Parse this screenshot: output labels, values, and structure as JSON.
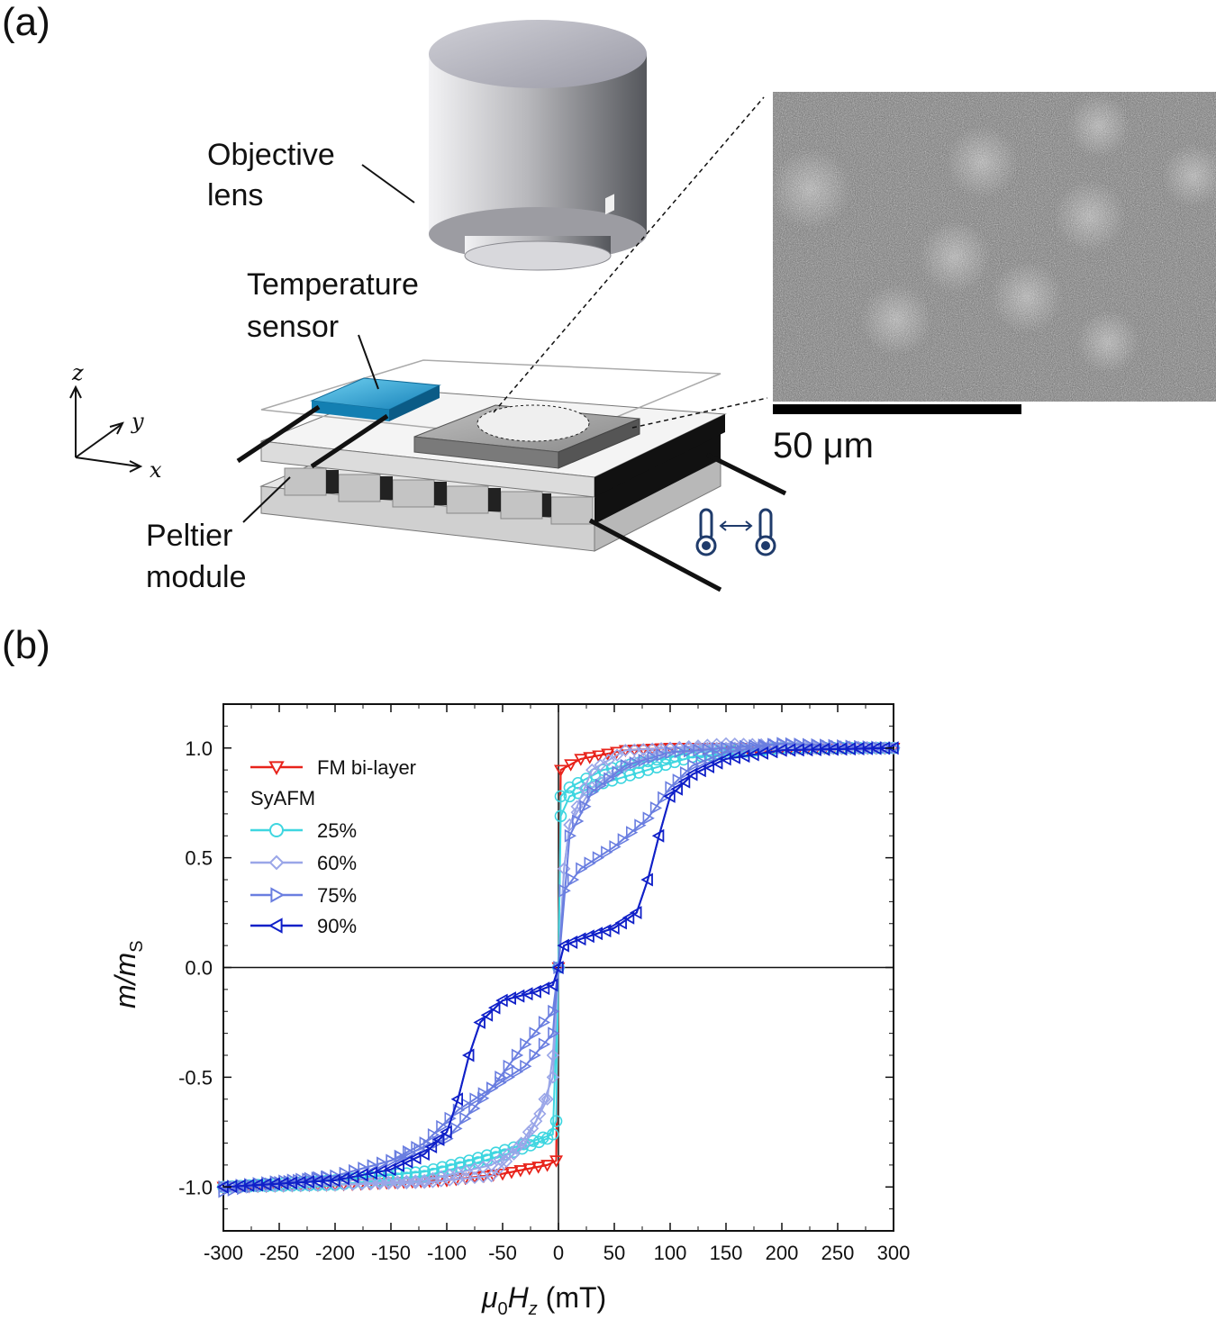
{
  "panel_a": {
    "label": "(a)",
    "objective_label_1": "Objective",
    "objective_label_2": "lens",
    "sensor_label_1": "Temperature",
    "sensor_label_2": "sensor",
    "peltier_label_1": "Peltier",
    "peltier_label_2": "module",
    "axis_z": "z",
    "axis_y": "y",
    "axis_x": "x",
    "scale_bar": "50 μm",
    "colors": {
      "sensor": "#1fa3d6",
      "lens": "#c8c8cc",
      "thermo": "#1f3b6b"
    }
  },
  "panel_b": {
    "label": "(b)",
    "xlabel_mu": "μ",
    "xlabel_sub0": "0",
    "xlabel_H": "H",
    "xlabel_subz": "z",
    "xlabel_unit": " (mT)",
    "ylabel_m": "m/m",
    "ylabel_sub": "S",
    "legend_title": "SyAFM",
    "chart_data": {
      "type": "line",
      "xlim": [
        -300,
        300
      ],
      "ylim": [
        -1.2,
        1.2
      ],
      "x_ticks": [
        "-300",
        "-250",
        "-200",
        "-150",
        "-100",
        "-50",
        "0",
        "50",
        "100",
        "150",
        "200",
        "250",
        "300"
      ],
      "y_ticks": [
        "-1.0",
        "-0.5",
        "0.0",
        "0.5",
        "1.0"
      ],
      "series": [
        {
          "name": "FM bi-layer",
          "color": "#e8231b",
          "marker": "triangle-down",
          "up_branch": [
            [
              -300,
              -1.0
            ],
            [
              -200,
              -0.99
            ],
            [
              -100,
              -0.97
            ],
            [
              -50,
              -0.94
            ],
            [
              -10,
              -0.9
            ],
            [
              -2,
              -0.88
            ],
            [
              0,
              0.0
            ],
            [
              2,
              0.9
            ],
            [
              20,
              0.95
            ],
            [
              60,
              0.99
            ],
            [
              100,
              1.0
            ],
            [
              200,
              1.0
            ],
            [
              300,
              1.0
            ]
          ],
          "down_branch": [
            [
              300,
              1.0
            ],
            [
              200,
              1.0
            ],
            [
              100,
              1.0
            ],
            [
              60,
              0.99
            ],
            [
              20,
              0.95
            ],
            [
              2,
              0.9
            ],
            [
              0,
              0.0
            ],
            [
              -2,
              -0.88
            ],
            [
              -10,
              -0.9
            ],
            [
              -50,
              -0.94
            ],
            [
              -100,
              -0.97
            ],
            [
              -200,
              -0.99
            ],
            [
              -300,
              -1.0
            ]
          ]
        },
        {
          "name": "25%",
          "color": "#3fd6e0",
          "marker": "circle",
          "up_branch": [
            [
              -300,
              -1.0
            ],
            [
              -200,
              -0.97
            ],
            [
              -120,
              -0.93
            ],
            [
              -80,
              -0.88
            ],
            [
              -40,
              -0.82
            ],
            [
              -5,
              -0.76
            ],
            [
              0,
              0.0
            ],
            [
              2,
              0.69
            ],
            [
              10,
              0.78
            ],
            [
              40,
              0.84
            ],
            [
              80,
              0.9
            ],
            [
              120,
              0.96
            ],
            [
              200,
              1.0
            ],
            [
              300,
              1.0
            ]
          ],
          "down_branch": [
            [
              300,
              1.0
            ],
            [
              200,
              1.0
            ],
            [
              120,
              0.98
            ],
            [
              80,
              0.94
            ],
            [
              40,
              0.9
            ],
            [
              10,
              0.82
            ],
            [
              2,
              0.78
            ],
            [
              0,
              0.0
            ],
            [
              -2,
              -0.7
            ],
            [
              -10,
              -0.78
            ],
            [
              -40,
              -0.84
            ],
            [
              -80,
              -0.9
            ],
            [
              -120,
              -0.95
            ],
            [
              -200,
              -0.99
            ],
            [
              -300,
              -1.0
            ]
          ]
        },
        {
          "name": "60%",
          "color": "#9aa6e8",
          "marker": "diamond",
          "up_branch": [
            [
              -300,
              -1.0
            ],
            [
              -200,
              -0.99
            ],
            [
              -120,
              -0.98
            ],
            [
              -60,
              -0.95
            ],
            [
              -40,
              -0.85
            ],
            [
              -20,
              -0.7
            ],
            [
              -5,
              -0.5
            ],
            [
              0,
              0.0
            ],
            [
              5,
              0.45
            ],
            [
              10,
              0.65
            ],
            [
              30,
              0.82
            ],
            [
              60,
              0.92
            ],
            [
              100,
              1.0
            ],
            [
              150,
              1.02
            ],
            [
              300,
              1.0
            ]
          ],
          "down_branch": [
            [
              300,
              1.0
            ],
            [
              150,
              1.0
            ],
            [
              100,
              1.0
            ],
            [
              60,
              0.99
            ],
            [
              30,
              0.9
            ],
            [
              10,
              0.65
            ],
            [
              5,
              0.45
            ],
            [
              0,
              0.0
            ],
            [
              -5,
              -0.4
            ],
            [
              -10,
              -0.6
            ],
            [
              -30,
              -0.8
            ],
            [
              -60,
              -0.9
            ],
            [
              -120,
              -0.97
            ],
            [
              -200,
              -0.99
            ],
            [
              -300,
              -1.0
            ]
          ]
        },
        {
          "name": "75%",
          "color": "#6a7ee0",
          "marker": "triangle-right",
          "up_branch": [
            [
              -300,
              -1.02
            ],
            [
              -250,
              -0.98
            ],
            [
              -200,
              -0.95
            ],
            [
              -150,
              -0.88
            ],
            [
              -100,
              -0.78
            ],
            [
              -60,
              -0.55
            ],
            [
              -30,
              -0.35
            ],
            [
              -5,
              -0.2
            ],
            [
              0,
              0.0
            ],
            [
              5,
              0.35
            ],
            [
              20,
              0.45
            ],
            [
              50,
              0.55
            ],
            [
              80,
              0.68
            ],
            [
              100,
              0.82
            ],
            [
              120,
              0.92
            ],
            [
              150,
              0.98
            ],
            [
              200,
              1.02
            ],
            [
              300,
              1.0
            ]
          ],
          "down_branch": [
            [
              300,
              1.0
            ],
            [
              200,
              1.02
            ],
            [
              150,
              1.0
            ],
            [
              100,
              0.98
            ],
            [
              60,
              0.92
            ],
            [
              30,
              0.8
            ],
            [
              10,
              0.6
            ],
            [
              0,
              0.0
            ],
            [
              -5,
              -0.3
            ],
            [
              -30,
              -0.45
            ],
            [
              -60,
              -0.55
            ],
            [
              -90,
              -0.65
            ],
            [
              -120,
              -0.8
            ],
            [
              -150,
              -0.88
            ],
            [
              -200,
              -0.95
            ],
            [
              -300,
              -1.0
            ]
          ]
        },
        {
          "name": "90%",
          "color": "#1020c8",
          "marker": "triangle-left",
          "up_branch": [
            [
              -300,
              -1.0
            ],
            [
              -200,
              -0.97
            ],
            [
              -150,
              -0.92
            ],
            [
              -120,
              -0.85
            ],
            [
              -100,
              -0.75
            ],
            [
              -90,
              -0.6
            ],
            [
              -80,
              -0.4
            ],
            [
              -70,
              -0.25
            ],
            [
              -50,
              -0.15
            ],
            [
              -20,
              -0.11
            ],
            [
              -5,
              -0.08
            ],
            [
              0,
              0.0
            ],
            [
              5,
              0.1
            ],
            [
              20,
              0.13
            ],
            [
              50,
              0.18
            ],
            [
              70,
              0.25
            ],
            [
              80,
              0.4
            ],
            [
              90,
              0.6
            ],
            [
              100,
              0.78
            ],
            [
              120,
              0.88
            ],
            [
              150,
              0.95
            ],
            [
              200,
              0.99
            ],
            [
              300,
              1.0
            ]
          ],
          "down_branch": [
            [
              300,
              1.0
            ],
            [
              200,
              0.99
            ],
            [
              150,
              0.95
            ],
            [
              120,
              0.88
            ],
            [
              100,
              0.78
            ],
            [
              90,
              0.6
            ],
            [
              80,
              0.4
            ],
            [
              70,
              0.25
            ],
            [
              50,
              0.18
            ],
            [
              20,
              0.13
            ],
            [
              5,
              0.1
            ],
            [
              0,
              0.0
            ],
            [
              -5,
              -0.08
            ],
            [
              -20,
              -0.11
            ],
            [
              -50,
              -0.15
            ],
            [
              -70,
              -0.25
            ],
            [
              -80,
              -0.4
            ],
            [
              -90,
              -0.6
            ],
            [
              -100,
              -0.75
            ],
            [
              -120,
              -0.85
            ],
            [
              -150,
              -0.92
            ],
            [
              -200,
              -0.97
            ],
            [
              -300,
              -1.0
            ]
          ]
        }
      ]
    }
  }
}
